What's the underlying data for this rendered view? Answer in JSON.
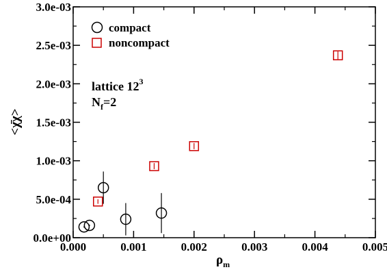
{
  "chart_data": {
    "type": "scatter",
    "xlabel": "ρ",
    "xlabel_sub": "m",
    "ylabel": "<χ̄χ>",
    "xlim": [
      0.0,
      0.005
    ],
    "ylim": [
      0.0,
      0.003
    ],
    "x_ticks": [
      0.0,
      0.001,
      0.002,
      0.003,
      0.004,
      0.005
    ],
    "x_tick_labels": [
      "0.000",
      "0.001",
      "0.002",
      "0.003",
      "0.004",
      "0.005"
    ],
    "y_ticks": [
      0.0,
      0.0005,
      0.001,
      0.0015,
      0.002,
      0.0025,
      0.003
    ],
    "y_tick_labels": [
      "0.0e+00",
      "5.0e-04",
      "1.0e-03",
      "1.5e-03",
      "2.0e-03",
      "2.5e-03",
      "3.0e-03"
    ],
    "grid": false,
    "legend_position": "top-left",
    "annotation": {
      "line1": "lattice 12",
      "line1_sup": "3",
      "line2_main": "N",
      "line2_sub": "f",
      "line2_rest": "=2"
    },
    "series": [
      {
        "name": "compact",
        "marker": "circle",
        "color": "#000000",
        "points": [
          {
            "x": 0.00018,
            "y": 0.00014,
            "err": 1e-05
          },
          {
            "x": 0.00027,
            "y": 0.00016,
            "err": 1e-05
          },
          {
            "x": 0.0005,
            "y": 0.00065,
            "err": 0.00021
          },
          {
            "x": 0.00087,
            "y": 0.00024,
            "err": 0.00021
          },
          {
            "x": 0.00146,
            "y": 0.00032,
            "err": 0.00026
          }
        ]
      },
      {
        "name": "noncompact",
        "marker": "square",
        "color": "#cc0000",
        "points": [
          {
            "x": 0.00041,
            "y": 0.00047,
            "err": 3e-05
          },
          {
            "x": 0.00134,
            "y": 0.00093,
            "err": 4e-05
          },
          {
            "x": 0.002,
            "y": 0.00119,
            "err": 4e-05
          },
          {
            "x": 0.00438,
            "y": 0.00237,
            "err": 5e-05
          }
        ]
      }
    ]
  }
}
